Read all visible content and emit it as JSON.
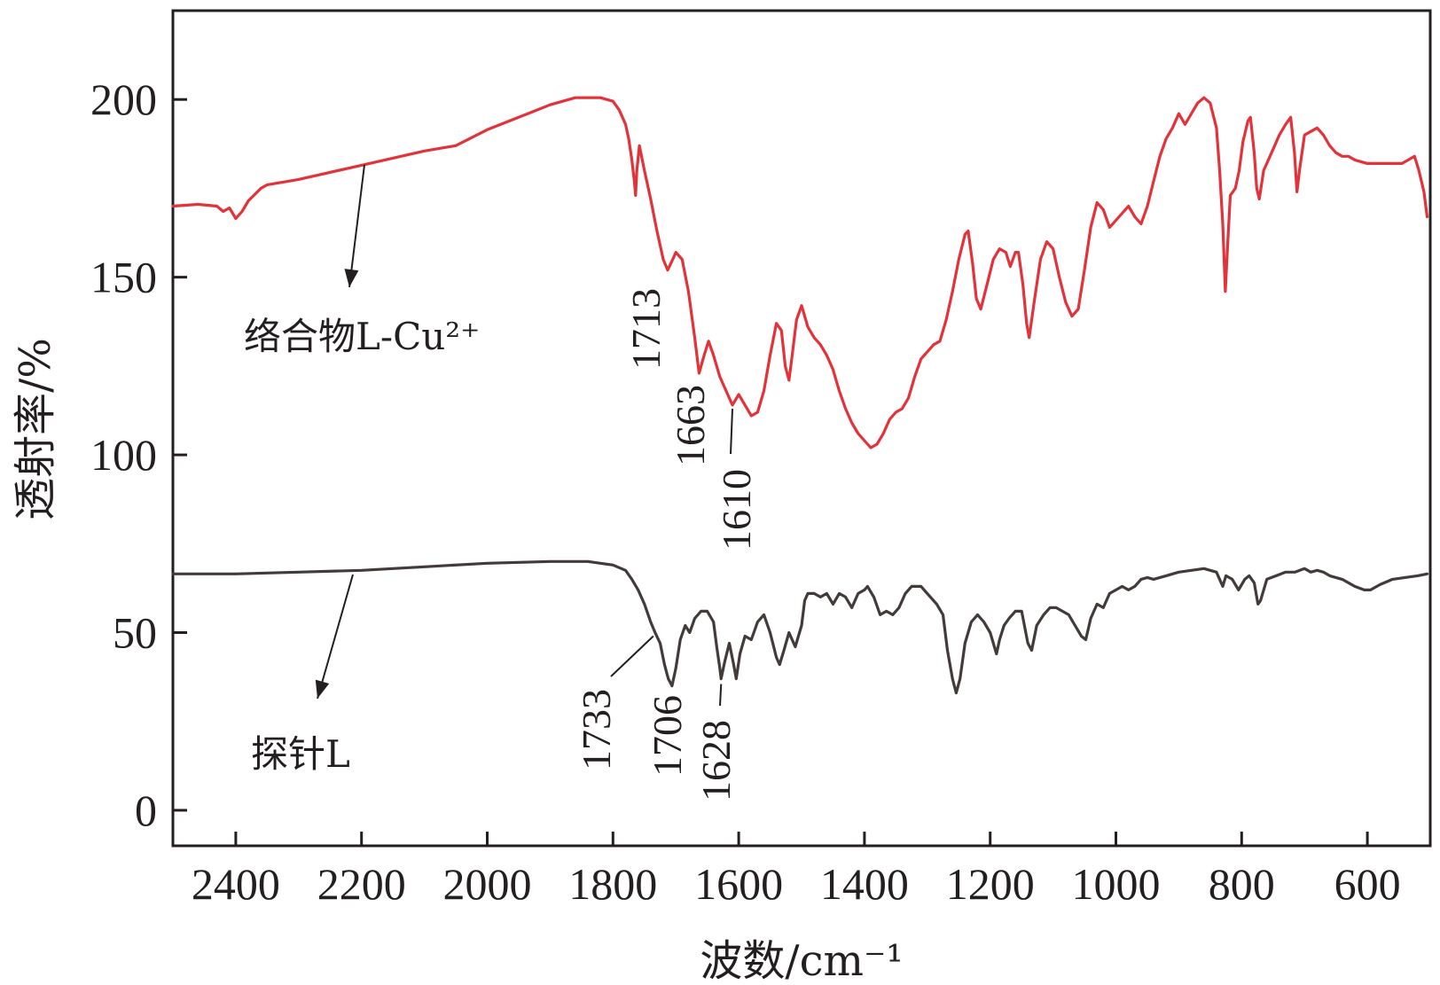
{
  "chart_data": {
    "type": "line",
    "xlabel": "波数/cm⁻¹",
    "ylabel": "透射率/%",
    "xlim": [
      2500,
      500
    ],
    "ylim": [
      -10,
      225
    ],
    "x_reversed": true,
    "xticks": [
      2400,
      2200,
      2000,
      1800,
      1600,
      1400,
      1200,
      1000,
      800,
      600
    ],
    "yticks": [
      0,
      50,
      100,
      150,
      200
    ],
    "grid": false,
    "series": [
      {
        "name": "络合物L-Cu²⁺",
        "color": "#e2323a",
        "points": [
          [
            2500,
            170
          ],
          [
            2460,
            170.5
          ],
          [
            2430,
            170
          ],
          [
            2420,
            168.5
          ],
          [
            2410,
            169.5
          ],
          [
            2400,
            166.5
          ],
          [
            2390,
            168.5
          ],
          [
            2380,
            171.5
          ],
          [
            2360,
            175
          ],
          [
            2350,
            176
          ],
          [
            2300,
            177.5
          ],
          [
            2200,
            181.5
          ],
          [
            2100,
            185.5
          ],
          [
            2050,
            187
          ],
          [
            2000,
            191.5
          ],
          [
            1950,
            195
          ],
          [
            1900,
            198.5
          ],
          [
            1860,
            200.5
          ],
          [
            1820,
            200.5
          ],
          [
            1800,
            199.5
          ],
          [
            1790,
            197
          ],
          [
            1780,
            193
          ],
          [
            1775,
            189
          ],
          [
            1770,
            183
          ],
          [
            1766,
            177
          ],
          [
            1764,
            173
          ],
          [
            1762,
            180
          ],
          [
            1758,
            187
          ],
          [
            1750,
            180
          ],
          [
            1740,
            172
          ],
          [
            1730,
            163
          ],
          [
            1720,
            155
          ],
          [
            1713,
            152
          ],
          [
            1705,
            155
          ],
          [
            1700,
            157
          ],
          [
            1690,
            155
          ],
          [
            1680,
            146
          ],
          [
            1670,
            133
          ],
          [
            1663,
            123
          ],
          [
            1655,
            128
          ],
          [
            1648,
            132
          ],
          [
            1640,
            128
          ],
          [
            1630,
            122
          ],
          [
            1620,
            118
          ],
          [
            1610,
            114
          ],
          [
            1600,
            117
          ],
          [
            1590,
            114
          ],
          [
            1580,
            111
          ],
          [
            1570,
            112
          ],
          [
            1560,
            118
          ],
          [
            1550,
            128
          ],
          [
            1540,
            137
          ],
          [
            1532,
            135
          ],
          [
            1526,
            125
          ],
          [
            1520,
            121
          ],
          [
            1515,
            128
          ],
          [
            1508,
            138
          ],
          [
            1500,
            142
          ],
          [
            1490,
            136
          ],
          [
            1480,
            133
          ],
          [
            1470,
            131
          ],
          [
            1460,
            128
          ],
          [
            1450,
            124
          ],
          [
            1440,
            118
          ],
          [
            1430,
            113
          ],
          [
            1420,
            109
          ],
          [
            1410,
            106
          ],
          [
            1400,
            104
          ],
          [
            1390,
            102
          ],
          [
            1380,
            103
          ],
          [
            1370,
            106
          ],
          [
            1360,
            110
          ],
          [
            1350,
            112
          ],
          [
            1340,
            113
          ],
          [
            1330,
            116
          ],
          [
            1320,
            122
          ],
          [
            1310,
            127
          ],
          [
            1300,
            129
          ],
          [
            1290,
            131
          ],
          [
            1280,
            132
          ],
          [
            1270,
            138
          ],
          [
            1260,
            146
          ],
          [
            1250,
            155
          ],
          [
            1240,
            162
          ],
          [
            1235,
            163
          ],
          [
            1228,
            154
          ],
          [
            1222,
            144
          ],
          [
            1215,
            141
          ],
          [
            1205,
            148
          ],
          [
            1195,
            155
          ],
          [
            1185,
            158
          ],
          [
            1175,
            157
          ],
          [
            1168,
            153
          ],
          [
            1160,
            157
          ],
          [
            1155,
            157
          ],
          [
            1148,
            148
          ],
          [
            1142,
            137
          ],
          [
            1138,
            133
          ],
          [
            1130,
            143
          ],
          [
            1120,
            155
          ],
          [
            1110,
            160
          ],
          [
            1100,
            158
          ],
          [
            1090,
            150
          ],
          [
            1080,
            143
          ],
          [
            1070,
            139
          ],
          [
            1060,
            141
          ],
          [
            1050,
            152
          ],
          [
            1040,
            164
          ],
          [
            1030,
            171
          ],
          [
            1020,
            169
          ],
          [
            1010,
            164
          ],
          [
            1000,
            166
          ],
          [
            990,
            168
          ],
          [
            980,
            170
          ],
          [
            970,
            167
          ],
          [
            960,
            165
          ],
          [
            950,
            170
          ],
          [
            940,
            177
          ],
          [
            930,
            184
          ],
          [
            920,
            189
          ],
          [
            910,
            192
          ],
          [
            900,
            196
          ],
          [
            890,
            193
          ],
          [
            880,
            196
          ],
          [
            870,
            199
          ],
          [
            860,
            200.5
          ],
          [
            850,
            199
          ],
          [
            840,
            192
          ],
          [
            835,
            180
          ],
          [
            830,
            165
          ],
          [
            826,
            146
          ],
          [
            822,
            160
          ],
          [
            818,
            173
          ],
          [
            810,
            175
          ],
          [
            804,
            180
          ],
          [
            798,
            188
          ],
          [
            790,
            194
          ],
          [
            786,
            195
          ],
          [
            780,
            185
          ],
          [
            776,
            175
          ],
          [
            772,
            172
          ],
          [
            765,
            180
          ],
          [
            750,
            186
          ],
          [
            740,
            190
          ],
          [
            730,
            193
          ],
          [
            722,
            195
          ],
          [
            716,
            185
          ],
          [
            712,
            174
          ],
          [
            708,
            180
          ],
          [
            700,
            190
          ],
          [
            690,
            191
          ],
          [
            680,
            192
          ],
          [
            670,
            190
          ],
          [
            660,
            187
          ],
          [
            650,
            185
          ],
          [
            640,
            184
          ],
          [
            630,
            184
          ],
          [
            620,
            183
          ],
          [
            600,
            182
          ],
          [
            580,
            182
          ],
          [
            560,
            182
          ],
          [
            545,
            182
          ],
          [
            535,
            183
          ],
          [
            525,
            184
          ],
          [
            518,
            180
          ],
          [
            510,
            174
          ],
          [
            505,
            167
          ]
        ]
      },
      {
        "name": "探针L",
        "color": "#423b3a",
        "points": [
          [
            2500,
            66.5
          ],
          [
            2400,
            66.5
          ],
          [
            2300,
            67
          ],
          [
            2200,
            67.5
          ],
          [
            2100,
            68.5
          ],
          [
            2000,
            69.5
          ],
          [
            1900,
            70
          ],
          [
            1840,
            70
          ],
          [
            1800,
            69
          ],
          [
            1780,
            67.5
          ],
          [
            1770,
            65
          ],
          [
            1760,
            62
          ],
          [
            1750,
            58
          ],
          [
            1740,
            53
          ],
          [
            1733,
            50
          ],
          [
            1725,
            47
          ],
          [
            1718,
            41
          ],
          [
            1712,
            37
          ],
          [
            1706,
            35
          ],
          [
            1700,
            40
          ],
          [
            1693,
            48
          ],
          [
            1685,
            52
          ],
          [
            1678,
            50
          ],
          [
            1670,
            54
          ],
          [
            1660,
            56
          ],
          [
            1650,
            56
          ],
          [
            1640,
            53
          ],
          [
            1635,
            46
          ],
          [
            1630,
            40
          ],
          [
            1628,
            37
          ],
          [
            1622,
            42
          ],
          [
            1615,
            47
          ],
          [
            1608,
            41
          ],
          [
            1604,
            37
          ],
          [
            1598,
            44
          ],
          [
            1590,
            49
          ],
          [
            1580,
            48
          ],
          [
            1570,
            53
          ],
          [
            1560,
            55
          ],
          [
            1550,
            50
          ],
          [
            1540,
            43
          ],
          [
            1535,
            41
          ],
          [
            1528,
            45
          ],
          [
            1520,
            50
          ],
          [
            1510,
            46
          ],
          [
            1500,
            52
          ],
          [
            1495,
            59
          ],
          [
            1490,
            61
          ],
          [
            1480,
            61
          ],
          [
            1470,
            60
          ],
          [
            1460,
            61
          ],
          [
            1450,
            58
          ],
          [
            1440,
            61
          ],
          [
            1430,
            60
          ],
          [
            1420,
            57
          ],
          [
            1410,
            61
          ],
          [
            1400,
            62
          ],
          [
            1395,
            63
          ],
          [
            1385,
            60
          ],
          [
            1375,
            55
          ],
          [
            1365,
            56
          ],
          [
            1355,
            55
          ],
          [
            1345,
            57
          ],
          [
            1335,
            61
          ],
          [
            1325,
            63
          ],
          [
            1310,
            63
          ],
          [
            1295,
            60
          ],
          [
            1285,
            58
          ],
          [
            1275,
            55
          ],
          [
            1268,
            45
          ],
          [
            1260,
            37
          ],
          [
            1254,
            33
          ],
          [
            1248,
            37
          ],
          [
            1240,
            47
          ],
          [
            1230,
            53
          ],
          [
            1220,
            55
          ],
          [
            1210,
            53
          ],
          [
            1200,
            50
          ],
          [
            1190,
            44
          ],
          [
            1185,
            48
          ],
          [
            1178,
            52
          ],
          [
            1170,
            54
          ],
          [
            1160,
            56
          ],
          [
            1150,
            56
          ],
          [
            1140,
            47
          ],
          [
            1134,
            45
          ],
          [
            1126,
            52
          ],
          [
            1115,
            55
          ],
          [
            1105,
            57
          ],
          [
            1095,
            57
          ],
          [
            1085,
            56
          ],
          [
            1075,
            55
          ],
          [
            1065,
            52
          ],
          [
            1055,
            49
          ],
          [
            1048,
            48
          ],
          [
            1040,
            54
          ],
          [
            1030,
            58
          ],
          [
            1020,
            57
          ],
          [
            1010,
            61
          ],
          [
            1000,
            62
          ],
          [
            990,
            63
          ],
          [
            980,
            62
          ],
          [
            970,
            63
          ],
          [
            960,
            65
          ],
          [
            950,
            65.5
          ],
          [
            940,
            65
          ],
          [
            930,
            65.5
          ],
          [
            920,
            66
          ],
          [
            900,
            67
          ],
          [
            880,
            67.5
          ],
          [
            860,
            68
          ],
          [
            840,
            67
          ],
          [
            830,
            63
          ],
          [
            825,
            66
          ],
          [
            815,
            65
          ],
          [
            805,
            62
          ],
          [
            795,
            65
          ],
          [
            788,
            66
          ],
          [
            780,
            64
          ],
          [
            774,
            58
          ],
          [
            770,
            59
          ],
          [
            760,
            65
          ],
          [
            745,
            66
          ],
          [
            730,
            67
          ],
          [
            715,
            67
          ],
          [
            700,
            68
          ],
          [
            690,
            67
          ],
          [
            680,
            67.5
          ],
          [
            670,
            67
          ],
          [
            660,
            66
          ],
          [
            640,
            65
          ],
          [
            620,
            63
          ],
          [
            605,
            62
          ],
          [
            595,
            62
          ],
          [
            580,
            63.5
          ],
          [
            560,
            65
          ],
          [
            540,
            65.5
          ],
          [
            520,
            66
          ],
          [
            505,
            66.5
          ]
        ]
      }
    ],
    "series_labels": [
      "络合物L-Cu²⁺",
      "探针L"
    ],
    "annotations": [
      {
        "text": "1713",
        "series": 0,
        "x": 1713,
        "y": 152
      },
      {
        "text": "1663",
        "series": 0,
        "x": 1663,
        "y": 123
      },
      {
        "text": "1610",
        "series": 0,
        "x": 1610,
        "y": 114
      },
      {
        "text": "1733",
        "series": 1,
        "x": 1733,
        "y": 50
      },
      {
        "text": "1706",
        "series": 1,
        "x": 1706,
        "y": 35
      },
      {
        "text": "1628",
        "series": 1,
        "x": 1628,
        "y": 37
      }
    ]
  }
}
